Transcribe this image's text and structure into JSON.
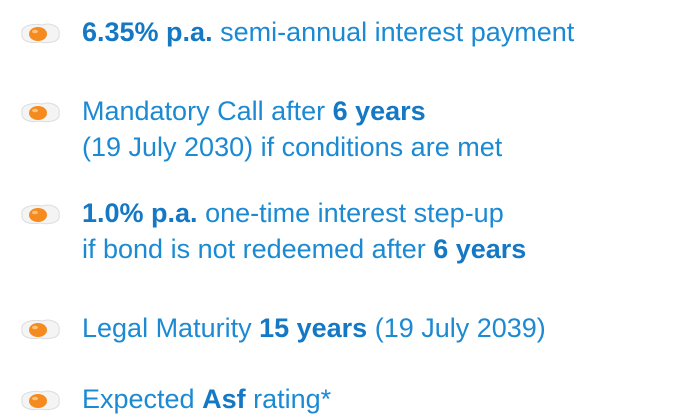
{
  "items": [
    {
      "lines": [
        [
          {
            "text": "6.35% p.a.",
            "bold": true
          },
          {
            "text": " semi-annual interest payment"
          }
        ]
      ]
    },
    {
      "lines": [
        [
          {
            "text": "Mandatory Call after "
          },
          {
            "text": "6 years",
            "bold": true
          }
        ],
        [
          {
            "text": "(19 July 2030) if conditions are met"
          }
        ]
      ]
    },
    {
      "lines": [
        [
          {
            "text": "1.0% p.a.",
            "bold": true
          },
          {
            "text": " one-time interest step-up"
          }
        ],
        [
          {
            "text": "if bond is not redeemed after "
          },
          {
            "text": "6 years",
            "bold": true
          }
        ]
      ]
    },
    {
      "lines": [
        [
          {
            "text": "Legal Maturity "
          },
          {
            "text": "15 years",
            "bold": true
          },
          {
            "text": " (19 July 2039)"
          }
        ]
      ]
    },
    {
      "lines": [
        [
          {
            "text": "Expected "
          },
          {
            "text": "Asf",
            "bold": true
          },
          {
            "text": " rating*"
          }
        ]
      ]
    }
  ]
}
